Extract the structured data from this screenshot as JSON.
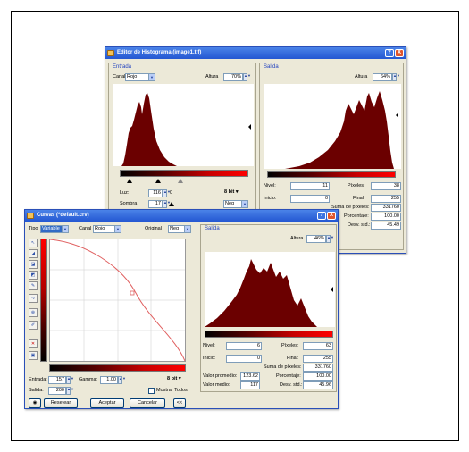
{
  "histogram_editor": {
    "title": "Editor de Histograma (image1.tif)",
    "help": "?",
    "close": "X",
    "input": {
      "section": "Entrada",
      "channel_label": "Canal",
      "channel_value": "Rojo",
      "height_label": "Altura",
      "height_value": "70%",
      "luz_label": "Luz:",
      "luz_value": "116",
      "luz_unit": "0",
      "sombra_label": "Sombra",
      "sombra_value": "17",
      "bits_value": "8 bit",
      "mode_value": "Neg"
    },
    "output": {
      "section": "Salida",
      "height_label": "Altura",
      "height_value": "64%",
      "nivel_label": "Nivel:",
      "nivel_value": "11",
      "pixeles_label": "Píxeles:",
      "pixeles_value": "38",
      "inicio_label": "Inicio:",
      "inicio_value": "0",
      "final_label": "Final:",
      "final_value": "255",
      "suma_label": "Suma de píxeles:",
      "suma_value": "331760",
      "porcentaje_label": "Porcentaje:",
      "porcentaje_value": "100.00",
      "desv_label": "Desv. std.:",
      "desv_value": "45.49"
    }
  },
  "curves": {
    "title": "Curvas (*default.crv)",
    "help": "?",
    "close": "X",
    "tipo_label": "Tipo",
    "tipo_value": "Variable",
    "canal_label": "Canal",
    "canal_value": "Rojo",
    "original_label": "Original",
    "original_value": "Neg",
    "entrada_label": "Entrada:",
    "entrada_value": "157",
    "gamma_label": "Gamma:",
    "gamma_value": "1.00",
    "bits_value": "8 bit",
    "salida_label": "Salida:",
    "salida_value": "200",
    "mostrar_label": "Mostrar Todos",
    "buttons": {
      "resetear": "Resetear",
      "aceptar": "Aceptar",
      "cancelar": "Cancelar",
      "collapse": "<<"
    },
    "output": {
      "section": "Salida",
      "height_label": "Altura",
      "height_value": "46%",
      "nivel_label": "Nivel:",
      "nivel_value": "6",
      "pixeles_label": "Píxeles:",
      "pixeles_value": "63",
      "inicio_label": "Inicio:",
      "inicio_value": "0",
      "final_label": "Final:",
      "final_value": "255",
      "suma_label": "Suma de píxeles:",
      "suma_value": "331760",
      "promedio_label": "Valor promedio:",
      "promedio_value": "123.62",
      "porcentaje_label": "Porcentaje:",
      "porcentaje_value": "100.00",
      "medio_label": "Valor medio:",
      "medio_value": "117",
      "desv_label": "Desv. std.:",
      "desv_value": "45.96"
    }
  },
  "colors": {
    "histogram_fill": "#6b0000",
    "titlebar": "#2457d2",
    "window_bg": "#ece9d8",
    "curve": "#e06060"
  }
}
